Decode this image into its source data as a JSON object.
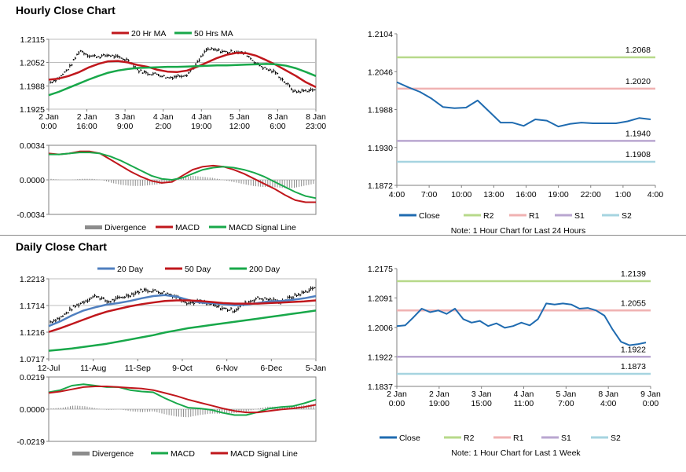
{
  "sections": {
    "hourly_title": "Hourly Close Chart",
    "daily_title": "Daily Close Chart"
  },
  "colors": {
    "close": "#1f6bb0",
    "ma_red": "#c0171c",
    "ma_green": "#18a84a",
    "ma_blue": "#4f7fbf",
    "r2": "#b7d98a",
    "r1": "#f0b2b2",
    "s1": "#b9a6d0",
    "s2": "#a6d4e0",
    "divergence": "#8c8c8c",
    "price_bar": "#000000"
  },
  "chart_data": [
    {
      "id": "hourly_price",
      "type": "line",
      "legend": [
        "20 Hr MA",
        "50 Hrs MA"
      ],
      "ylim": [
        1.1925,
        1.2115
      ],
      "yticks": [
        "1.2115",
        "1.2052",
        "1.1988",
        "1.1925"
      ],
      "xticks": [
        [
          "2 Jan",
          "0:00"
        ],
        [
          "2 Jan",
          "16:00"
        ],
        [
          "3 Jan",
          "9:00"
        ],
        [
          "4 Jan",
          "2:00"
        ],
        [
          "4 Jan",
          "19:00"
        ],
        [
          "5 Jan",
          "12:00"
        ],
        [
          "8 Jan",
          "6:00"
        ],
        [
          "8 Jan",
          "23:00"
        ]
      ],
      "series": [
        {
          "name": "20 Hr MA",
          "color": "#c0171c",
          "values": [
            1.2005,
            1.2008,
            1.2015,
            1.2025,
            1.2038,
            1.2048,
            1.2055,
            1.2056,
            1.2052,
            1.2045,
            1.204,
            1.2032,
            1.2027,
            1.2026,
            1.203,
            1.204,
            1.2052,
            1.2064,
            1.2073,
            1.2078,
            1.2077,
            1.207,
            1.2058,
            1.2045,
            1.203,
            1.2015,
            1.1998,
            1.1985
          ]
        },
        {
          "name": "50 Hrs MA",
          "color": "#18a84a",
          "values": [
            1.1963,
            1.1972,
            1.1983,
            1.1994,
            1.2005,
            1.2015,
            1.2024,
            1.203,
            1.2034,
            1.2037,
            1.2038,
            1.2039,
            1.204,
            1.204,
            1.2041,
            1.2042,
            1.2043,
            1.2044,
            1.2044,
            1.2045,
            1.2046,
            1.2047,
            1.2048,
            1.2047,
            1.2043,
            1.2036,
            1.2026,
            1.2015
          ]
        },
        {
          "name": "Price",
          "color": "#000000",
          "values": [
            1.1998,
            1.2012,
            1.204,
            1.2085,
            1.207,
            1.2068,
            1.2072,
            1.2065,
            1.2058,
            1.203,
            1.2022,
            1.202,
            1.201,
            1.2015,
            1.202,
            1.205,
            1.2088,
            1.2085,
            1.208,
            1.2082,
            1.2075,
            1.205,
            1.2035,
            1.2025,
            1.1998,
            1.1972,
            1.1975,
            1.1978
          ]
        }
      ]
    },
    {
      "id": "hourly_macd",
      "type": "line",
      "legend": [
        "Divergence",
        "MACD",
        "MACD Signal Line"
      ],
      "ylim": [
        -0.0034,
        0.0034
      ],
      "yticks": [
        "0.0034",
        "0.0000",
        "-0.0034"
      ],
      "series": [
        {
          "name": "MACD",
          "color": "#c0171c",
          "values": [
            0.0026,
            0.0025,
            0.0026,
            0.0028,
            0.0028,
            0.0026,
            0.002,
            0.0014,
            0.0008,
            0.0003,
            -0.0001,
            -0.0003,
            -0.0002,
            0.0004,
            0.001,
            0.0013,
            0.0014,
            0.0013,
            0.001,
            0.0006,
            0.0001,
            -0.0004,
            -0.0009,
            -0.0015,
            -0.002,
            -0.0022,
            -0.0022
          ]
        },
        {
          "name": "MACD Signal Line",
          "color": "#18a84a",
          "values": [
            0.0025,
            0.0025,
            0.0026,
            0.0027,
            0.0027,
            0.0026,
            0.0023,
            0.0019,
            0.0014,
            0.0009,
            0.0004,
            0.0001,
            0.0,
            0.0002,
            0.0006,
            0.001,
            0.0012,
            0.0013,
            0.0012,
            0.001,
            0.0007,
            0.0003,
            -0.0002,
            -0.0007,
            -0.0012,
            -0.0016,
            -0.0018
          ]
        },
        {
          "name": "Divergence",
          "color": "#8c8c8c",
          "values": [
            0.0001,
            0.0,
            0.0,
            0.0001,
            0.0001,
            0.0,
            -0.0003,
            -0.0005,
            -0.0006,
            -0.0006,
            -0.0005,
            -0.0004,
            -0.0002,
            0.0002,
            0.0004,
            0.0003,
            0.0002,
            0.0,
            -0.0002,
            -0.0004,
            -0.0006,
            -0.0007,
            -0.0007,
            -0.0008,
            -0.0008,
            -0.0006,
            -0.0004
          ]
        }
      ]
    },
    {
      "id": "hourly_levels",
      "type": "line",
      "ylim": [
        1.1872,
        1.2104
      ],
      "yticks": [
        "1.2104",
        "1.2046",
        "1.1988",
        "1.1930",
        "1.1872"
      ],
      "xticks": [
        "4:00",
        "7:00",
        "10:00",
        "13:00",
        "16:00",
        "19:00",
        "22:00",
        "1:00",
        "4:00"
      ],
      "levels": [
        {
          "name": "R2",
          "value": 1.2068,
          "label": "1.2068",
          "color": "#b7d98a"
        },
        {
          "name": "R1",
          "value": 1.202,
          "label": "1.2020",
          "color": "#f0b2b2"
        },
        {
          "name": "S1",
          "value": 1.194,
          "label": "1.1940",
          "color": "#b9a6d0"
        },
        {
          "name": "S2",
          "value": 1.1908,
          "label": "1.1908",
          "color": "#a6d4e0"
        }
      ],
      "close": [
        1.203,
        1.2022,
        1.2015,
        1.2005,
        1.1992,
        1.199,
        1.1991,
        1.2002,
        1.1985,
        1.1968,
        1.1968,
        1.1963,
        1.1973,
        1.1971,
        1.1962,
        1.1966,
        1.1968,
        1.1967,
        1.1967,
        1.1967,
        1.197,
        1.1975,
        1.1973
      ],
      "legend": [
        "Close",
        "R2",
        "R1",
        "S1",
        "S2"
      ],
      "note": "Note: 1 Hour Chart for Last 24 Hours"
    },
    {
      "id": "daily_price",
      "type": "line",
      "legend": [
        "20 Day",
        "50 Day",
        "200 Day"
      ],
      "ylim": [
        1.0717,
        1.2213
      ],
      "yticks": [
        "1.2213",
        "1.1714",
        "1.1216",
        "1.0717"
      ],
      "xticks": [
        "12-Jul",
        "11-Aug",
        "11-Sep",
        "9-Oct",
        "6-Nov",
        "6-Dec",
        "5-Jan"
      ],
      "series": [
        {
          "name": "20 Day",
          "color": "#4f7fbf",
          "values": [
            1.133,
            1.142,
            1.153,
            1.162,
            1.168,
            1.173,
            1.176,
            1.18,
            1.185,
            1.189,
            1.191,
            1.188,
            1.182,
            1.177,
            1.176,
            1.174,
            1.172,
            1.173,
            1.176,
            1.179,
            1.18,
            1.182,
            1.185,
            1.189
          ]
        },
        {
          "name": "50 Day",
          "color": "#c0171c",
          "values": [
            1.122,
            1.129,
            1.137,
            1.145,
            1.153,
            1.16,
            1.165,
            1.17,
            1.174,
            1.177,
            1.18,
            1.181,
            1.181,
            1.18,
            1.178,
            1.176,
            1.175,
            1.175,
            1.175,
            1.176,
            1.177,
            1.178,
            1.179,
            1.181
          ]
        },
        {
          "name": "200 Day",
          "color": "#18a84a",
          "values": [
            1.087,
            1.089,
            1.091,
            1.094,
            1.097,
            1.1,
            1.104,
            1.108,
            1.112,
            1.116,
            1.121,
            1.125,
            1.129,
            1.132,
            1.135,
            1.138,
            1.141,
            1.144,
            1.147,
            1.15,
            1.153,
            1.156,
            1.159,
            1.162
          ]
        },
        {
          "name": "Price",
          "color": "#000000",
          "values": [
            1.141,
            1.15,
            1.168,
            1.18,
            1.19,
            1.178,
            1.185,
            1.192,
            1.2,
            1.199,
            1.195,
            1.188,
            1.176,
            1.179,
            1.173,
            1.166,
            1.162,
            1.176,
            1.185,
            1.183,
            1.178,
            1.187,
            1.195,
            1.205
          ]
        }
      ]
    },
    {
      "id": "daily_macd",
      "type": "line",
      "legend": [
        "Divergence",
        "MACD",
        "MACD Signal Line"
      ],
      "ylim": [
        -0.0219,
        0.0219
      ],
      "yticks": [
        "0.0219",
        "0.0000",
        "-0.0219"
      ],
      "series": [
        {
          "name": "MACD",
          "color": "#18a84a",
          "values": [
            0.0115,
            0.013,
            0.016,
            0.017,
            0.016,
            0.015,
            0.015,
            0.013,
            0.012,
            0.0115,
            0.0075,
            0.004,
            0.001,
            0.0005,
            -0.0005,
            -0.0025,
            -0.004,
            -0.004,
            -0.002,
            0.0005,
            0.0015,
            0.002,
            0.004,
            0.0065
          ]
        },
        {
          "name": "MACD Signal Line",
          "color": "#c0171c",
          "values": [
            0.011,
            0.012,
            0.0135,
            0.015,
            0.0155,
            0.0155,
            0.015,
            0.0145,
            0.014,
            0.013,
            0.011,
            0.009,
            0.0065,
            0.0045,
            0.0025,
            0.0005,
            -0.0012,
            -0.0022,
            -0.0022,
            -0.0012,
            -0.0002,
            0.0005,
            0.0015,
            0.003
          ]
        },
        {
          "name": "Divergence",
          "color": "#8c8c8c",
          "values": [
            0.0005,
            0.001,
            0.0025,
            0.002,
            0.0005,
            -0.0005,
            0.0,
            -0.0015,
            -0.002,
            -0.0015,
            -0.0035,
            -0.005,
            -0.0055,
            -0.004,
            -0.003,
            -0.003,
            -0.0028,
            -0.0018,
            0.0002,
            0.0017,
            0.0017,
            0.0015,
            0.0025,
            0.0035
          ]
        }
      ]
    },
    {
      "id": "daily_levels",
      "type": "line",
      "ylim": [
        1.1837,
        1.2175
      ],
      "yticks": [
        "1.2175",
        "1.2091",
        "1.2006",
        "1.1922",
        "1.1837"
      ],
      "xticks": [
        [
          "2 Jan",
          "0:00"
        ],
        [
          "2 Jan",
          "19:00"
        ],
        [
          "3 Jan",
          "15:00"
        ],
        [
          "4 Jan",
          "11:00"
        ],
        [
          "5 Jan",
          "7:00"
        ],
        [
          "8 Jan",
          "4:00"
        ],
        [
          "9 Jan",
          "0:00"
        ]
      ],
      "levels": [
        {
          "name": "R2",
          "value": 1.2139,
          "label": "1.2139",
          "color": "#b7d98a"
        },
        {
          "name": "R1",
          "value": 1.2055,
          "label": "1.2055",
          "color": "#f0b2b2"
        },
        {
          "name": "S1",
          "value": 1.1922,
          "label": "1.1922",
          "color": "#b9a6d0"
        },
        {
          "name": "S2",
          "value": 1.1873,
          "label": "1.1873",
          "color": "#a6d4e0"
        }
      ],
      "close": [
        1.201,
        1.2012,
        1.2035,
        1.206,
        1.205,
        1.2055,
        1.2045,
        1.206,
        1.203,
        1.202,
        1.2025,
        1.201,
        1.2018,
        1.2005,
        1.201,
        1.202,
        1.2012,
        1.203,
        1.2075,
        1.2072,
        1.2075,
        1.2072,
        1.206,
        1.2062,
        1.2055,
        1.204,
        1.2,
        1.1965,
        1.1955,
        1.1958,
        1.1963
      ],
      "legend": [
        "Close",
        "R2",
        "R1",
        "S1",
        "S2"
      ],
      "note": "Note: 1 Hour Chart for Last 1 Week"
    }
  ]
}
